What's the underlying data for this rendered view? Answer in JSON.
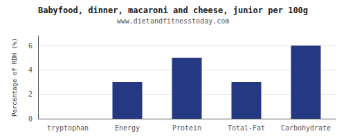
{
  "chart_data": {
    "type": "bar",
    "title": "Babyfood, dinner, macaroni and cheese, junior per 100g",
    "subtitle": "www.dietandfitnesstoday.com",
    "categories": [
      "tryptophan",
      "Energy",
      "Protein",
      "Total-Fat",
      "Carbohydrate"
    ],
    "values": [
      0,
      3.0,
      5.0,
      3.0,
      6.0
    ],
    "color": "#253982",
    "ylabel": "Percentage of RDH (%)",
    "ylim": [
      0,
      6.8
    ],
    "yticks": [
      0,
      2,
      4,
      6
    ],
    "grid": true
  }
}
